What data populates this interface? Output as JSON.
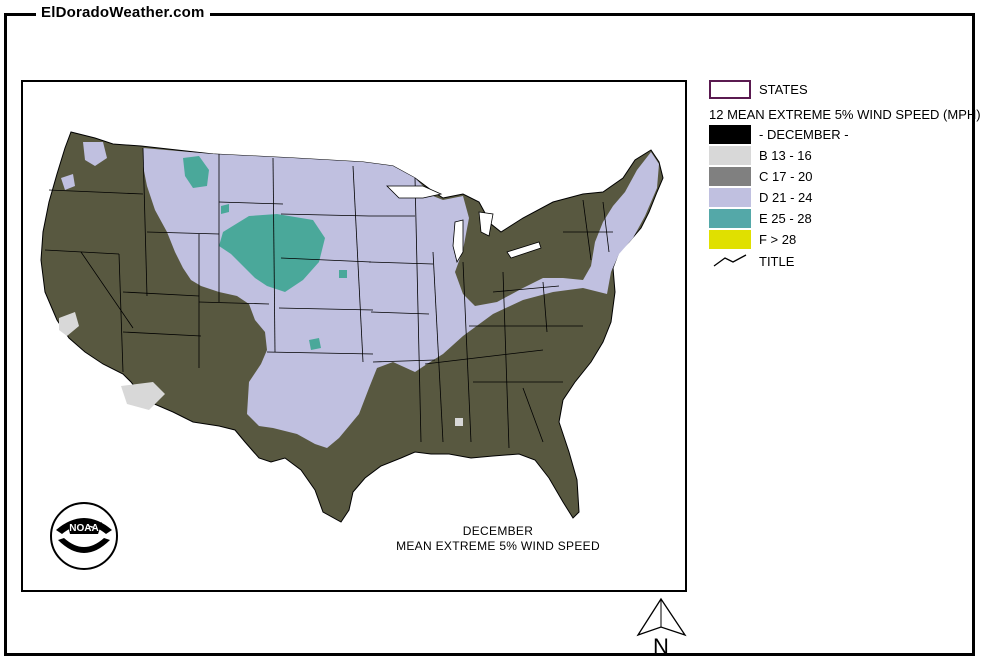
{
  "site_title": "ElDoradoWeather.com",
  "map": {
    "caption_line1": "DECEMBER",
    "caption_line2": "MEAN EXTREME 5% WIND SPEED",
    "logo_text": "NOAA"
  },
  "legend": {
    "states_label": "STATES",
    "layer_title": "12 MEAN EXTREME 5% WIND SPEED (MPH)",
    "classes": [
      {
        "label": "- DECEMBER -",
        "color": "#000000"
      },
      {
        "label": "B 13 - 16",
        "color": "#d8d8d8"
      },
      {
        "label": "C 17 - 20",
        "color": "#808080"
      },
      {
        "label": "D 21 - 24",
        "color": "#c0c0e0"
      },
      {
        "label": "E 25 - 28",
        "color": "#54a8a8"
      },
      {
        "label": "F > 28",
        "color": "#e0e000"
      }
    ],
    "title_label": "TITLE"
  },
  "colors": {
    "dark_olive": "#585840",
    "lavender": "#c0c0e0",
    "teal": "#4aa89a",
    "light_gray": "#d8d8d8"
  },
  "compass": {
    "label": "N"
  }
}
